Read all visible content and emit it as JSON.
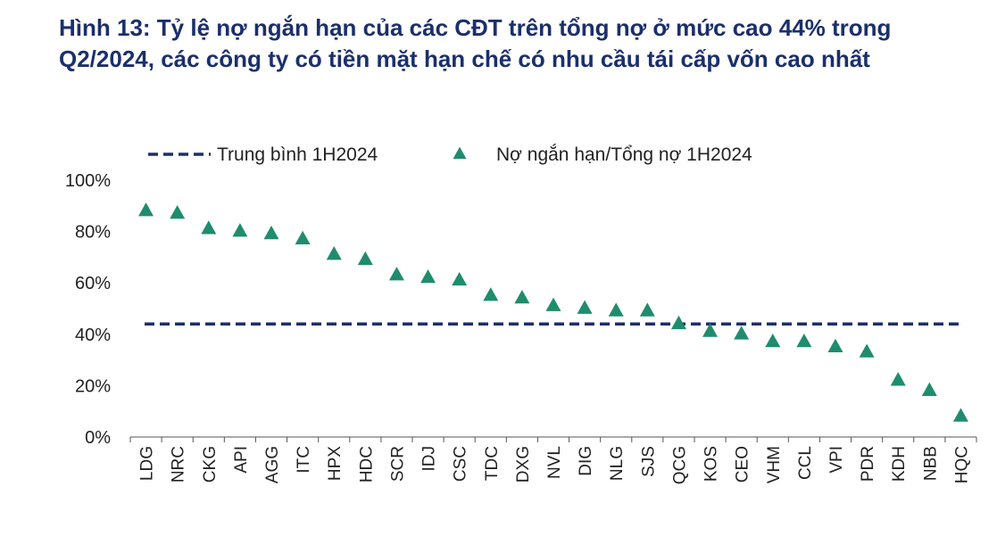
{
  "title": {
    "line1": "Hình 13: Tỷ lệ nợ ngắn hạn của các CĐT trên tổng nợ ở mức cao 44% trong",
    "line2": "Q2/2024, các công ty có tiền mặt hạn chế có nhu cầu tái cấp vốn cao nhất"
  },
  "colors": {
    "title": "#1b2f6b",
    "average_line": "#1b2f6b",
    "marker": "#1f8c6e"
  },
  "chart_data": {
    "type": "scatter",
    "title": "",
    "xlabel": "",
    "ylabel": "",
    "ylim": [
      0,
      100
    ],
    "yticks": [
      "0%",
      "20%",
      "40%",
      "60%",
      "80%",
      "100%"
    ],
    "legend_position": "top",
    "grid": false,
    "categories": [
      "LDG",
      "NRC",
      "CKG",
      "API",
      "AGG",
      "ITC",
      "HPX",
      "HDC",
      "SCR",
      "IDJ",
      "CSC",
      "TDC",
      "DXG",
      "NVL",
      "DIG",
      "NLG",
      "SJS",
      "QCG",
      "KOS",
      "CEO",
      "VHM",
      "CCL",
      "VPI",
      "PDR",
      "KDH",
      "NBB",
      "HQC"
    ],
    "series": [
      {
        "name": "Nợ ngắn hạn/Tổng nợ 1H2024",
        "marker": "triangle",
        "values": [
          88,
          87,
          81,
          80,
          79,
          77,
          71,
          69,
          63,
          62,
          61,
          55,
          54,
          51,
          50,
          49,
          49,
          44,
          41,
          40,
          37,
          37,
          35,
          33,
          22,
          18,
          8
        ]
      },
      {
        "name": "Trung bình 1H2024",
        "style": "dashed-line",
        "value": 44
      }
    ]
  }
}
